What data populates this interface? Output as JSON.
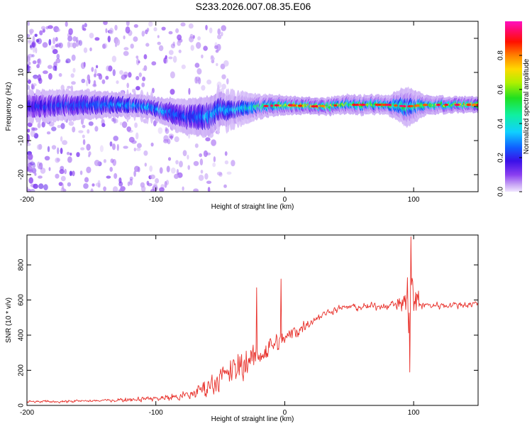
{
  "title": "S233.2026.007.08.35.E06",
  "colors": {
    "snr_line": "#e8302a",
    "axes": "#000000",
    "spectrogram_background": "#ffffff"
  },
  "chart_data": [
    {
      "type": "heatmap",
      "name": "spectrogram",
      "xlabel": "Height of straight line (km)",
      "ylabel": "Frequency (Hz)",
      "xlim": [
        -200,
        150
      ],
      "ylim": [
        -25,
        25
      ],
      "xticks": [
        -200,
        -100,
        0,
        100
      ],
      "yticks": [
        -20,
        -10,
        0,
        10,
        20
      ],
      "colorbar": {
        "label": "Normalized spectral amplitude",
        "range": [
          0,
          1
        ],
        "ticks": [
          0.0,
          0.2,
          0.4,
          0.6,
          0.8
        ],
        "tick_labels": [
          "0.0",
          "0.2",
          "0.4",
          "0.6",
          "0.8"
        ],
        "colormap": "rainbow (purple-blue-cyan-green-yellow-red-magenta)"
      },
      "ridge": [
        {
          "x": -200,
          "center": 0,
          "halfwidth": 3,
          "amp": 0.18
        },
        {
          "x": -150,
          "center": 0.5,
          "halfwidth": 2.5,
          "amp": 0.25
        },
        {
          "x": -120,
          "center": 0.5,
          "halfwidth": 2,
          "amp": 0.3
        },
        {
          "x": -100,
          "center": -0.5,
          "halfwidth": 2,
          "amp": 0.3
        },
        {
          "x": -80,
          "center": -3,
          "halfwidth": 3,
          "amp": 0.22
        },
        {
          "x": -60,
          "center": -3,
          "halfwidth": 3.5,
          "amp": 0.28
        },
        {
          "x": -50,
          "center": -1,
          "halfwidth": 3,
          "amp": 0.32
        },
        {
          "x": -40,
          "center": -1,
          "halfwidth": 2.5,
          "amp": 0.32
        },
        {
          "x": -30,
          "center": -0.5,
          "halfwidth": 2,
          "amp": 0.38
        },
        {
          "x": -20,
          "center": 0,
          "halfwidth": 1.5,
          "amp": 0.48
        },
        {
          "x": 0,
          "center": 0.5,
          "halfwidth": 1.2,
          "amp": 0.62
        },
        {
          "x": 20,
          "center": 0,
          "halfwidth": 1,
          "amp": 0.72
        },
        {
          "x": 50,
          "center": 0.5,
          "halfwidth": 1.2,
          "amp": 0.55
        },
        {
          "x": 80,
          "center": 0.5,
          "halfwidth": 1.2,
          "amp": 0.55
        },
        {
          "x": 95,
          "center": 0,
          "halfwidth": 2.5,
          "amp": 0.45
        },
        {
          "x": 110,
          "center": 0.5,
          "halfwidth": 1.2,
          "amp": 0.58
        },
        {
          "x": 130,
          "center": 0.5,
          "halfwidth": 1,
          "amp": 0.62
        },
        {
          "x": 150,
          "center": 0.5,
          "halfwidth": 1,
          "amp": 0.75
        }
      ],
      "scatter_noise_region": [
        -200,
        -40
      ]
    },
    {
      "type": "line",
      "name": "snr",
      "xlabel": "Height of straight line (km)",
      "ylabel": "SNR (10 * v/v)",
      "xlim": [
        -200,
        150
      ],
      "ylim": [
        0,
        970
      ],
      "xticks": [
        -200,
        -100,
        0,
        100
      ],
      "yticks": [
        0,
        200,
        400,
        600,
        800
      ],
      "envelope": {
        "x": [
          -200,
          -150,
          -100,
          -80,
          -70,
          -60,
          -50,
          -40,
          -30,
          -20,
          -10,
          0,
          10,
          20,
          30,
          40,
          50,
          60,
          80,
          90,
          95,
          98,
          100,
          105,
          110,
          120,
          150
        ],
        "y": [
          20,
          25,
          40,
          50,
          70,
          110,
          160,
          200,
          240,
          290,
          340,
          380,
          430,
          480,
          520,
          550,
          560,
          560,
          570,
          580,
          590,
          600,
          590,
          580,
          570,
          570,
          580
        ],
        "noise": [
          10,
          12,
          25,
          40,
          60,
          90,
          110,
          120,
          130,
          110,
          90,
          80,
          60,
          40,
          30,
          30,
          30,
          30,
          30,
          60,
          200,
          330,
          200,
          70,
          30,
          30,
          30
        ]
      },
      "peaks": [
        {
          "x": 98,
          "y": 960
        },
        {
          "x": 97,
          "y": 190
        },
        {
          "x": -22,
          "y": 670
        },
        {
          "x": -3,
          "y": 720
        }
      ]
    }
  ]
}
